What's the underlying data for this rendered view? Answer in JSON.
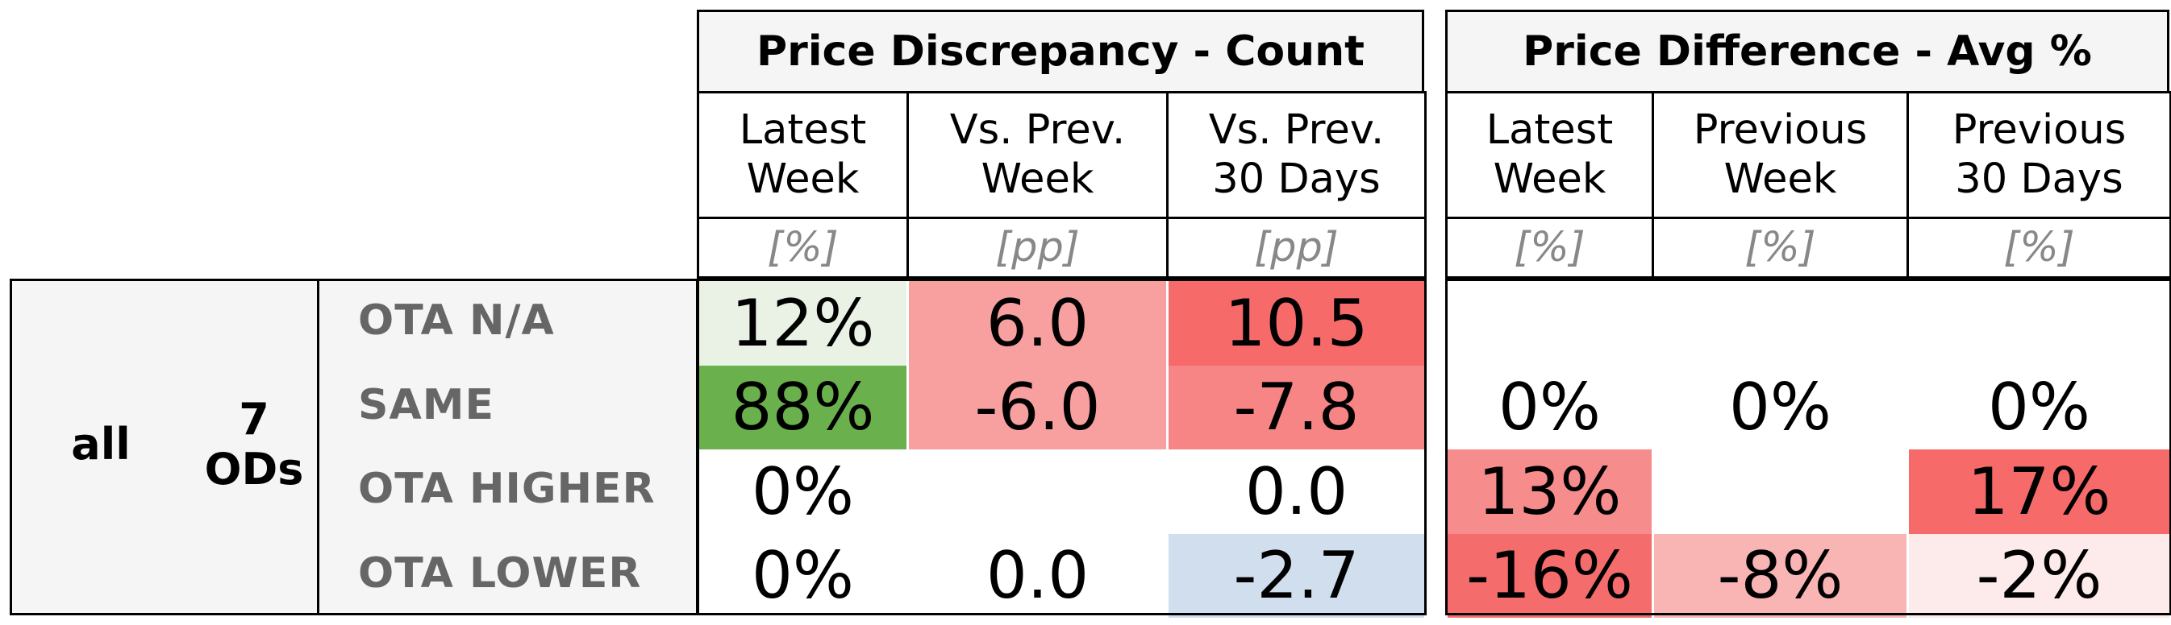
{
  "chart_data": {
    "type": "table",
    "group": {
      "name": "all",
      "count_label": "7\nODs"
    },
    "rows": [
      "OTA N/A",
      "SAME",
      "OTA HIGHER",
      "OTA LOWER"
    ],
    "sections": [
      {
        "title": "Price Discrepancy - Count",
        "columns": [
          {
            "header": "Latest\nWeek",
            "unit": "[%]"
          },
          {
            "header": "Vs. Prev.\nWeek",
            "unit": "[pp]"
          },
          {
            "header": "Vs. Prev.\n30 Days",
            "unit": "[pp]"
          }
        ],
        "cells": [
          [
            {
              "text": "12%",
              "color": "#e9f2e4"
            },
            {
              "text": "6.0",
              "color": "#f8a0a0"
            },
            {
              "text": "10.5",
              "color": "#f66a6a"
            }
          ],
          [
            {
              "text": "88%",
              "color": "#6ab04c"
            },
            {
              "text": "-6.0",
              "color": "#f8a0a0"
            },
            {
              "text": "-7.8",
              "color": "#f78585"
            }
          ],
          [
            {
              "text": "0%",
              "color": "#ffffff"
            },
            {
              "text": "",
              "color": "#ffffff"
            },
            {
              "text": "0.0",
              "color": "#ffffff"
            }
          ],
          [
            {
              "text": "0%",
              "color": "#ffffff"
            },
            {
              "text": "0.0",
              "color": "#ffffff"
            },
            {
              "text": "-2.7",
              "color": "#d1deee"
            }
          ]
        ]
      },
      {
        "title": "Price Difference - Avg %",
        "columns": [
          {
            "header": "Latest\nWeek",
            "unit": "[%]"
          },
          {
            "header": "Previous\nWeek",
            "unit": "[%]"
          },
          {
            "header": "Previous\n30 Days",
            "unit": "[%]"
          }
        ],
        "cells": [
          [
            {
              "text": "",
              "color": "#ffffff"
            },
            {
              "text": "",
              "color": "#ffffff"
            },
            {
              "text": "",
              "color": "#ffffff"
            }
          ],
          [
            {
              "text": "0%",
              "color": "#ffffff"
            },
            {
              "text": "0%",
              "color": "#ffffff"
            },
            {
              "text": "0%",
              "color": "#ffffff"
            }
          ],
          [
            {
              "text": "13%",
              "color": "#f68c8c"
            },
            {
              "text": "",
              "color": "#ffffff"
            },
            {
              "text": "17%",
              "color": "#f66a6a"
            }
          ],
          [
            {
              "text": "-16%",
              "color": "#f56c6c"
            },
            {
              "text": "-8%",
              "color": "#f9b4b4"
            },
            {
              "text": "-2%",
              "color": "#fdeaea"
            }
          ]
        ]
      }
    ]
  }
}
